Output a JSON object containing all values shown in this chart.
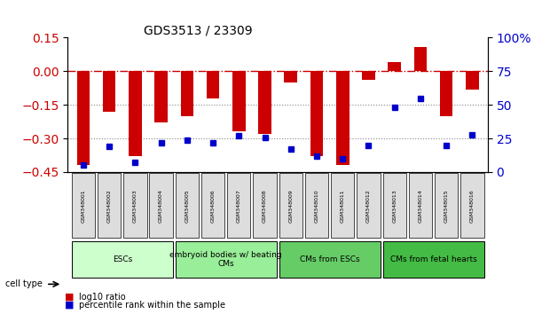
{
  "title": "GDS3513 / 23309",
  "samples": [
    "GSM348001",
    "GSM348002",
    "GSM348003",
    "GSM348004",
    "GSM348005",
    "GSM348006",
    "GSM348007",
    "GSM348008",
    "GSM348009",
    "GSM348010",
    "GSM348011",
    "GSM348012",
    "GSM348013",
    "GSM348014",
    "GSM348015",
    "GSM348016"
  ],
  "log10_ratio": [
    -0.42,
    -0.18,
    -0.38,
    -0.23,
    -0.2,
    -0.12,
    -0.27,
    -0.28,
    -0.05,
    -0.38,
    -0.42,
    -0.04,
    0.04,
    0.11,
    -0.2,
    -0.08
  ],
  "percentile_rank": [
    5,
    19,
    7,
    22,
    24,
    22,
    27,
    26,
    17,
    12,
    10,
    20,
    48,
    55,
    20,
    28
  ],
  "cell_type_groups": [
    {
      "label": "ESCs",
      "start": 0,
      "end": 3,
      "color": "#ccffcc"
    },
    {
      "label": "embryoid bodies w/ beating\nCMs",
      "start": 4,
      "end": 7,
      "color": "#99ee99"
    },
    {
      "label": "CMs from ESCs",
      "start": 8,
      "end": 11,
      "color": "#66dd66"
    },
    {
      "label": "CMs from fetal hearts",
      "start": 12,
      "end": 15,
      "color": "#33cc33"
    }
  ],
  "bar_color": "#cc0000",
  "dot_color": "#0000cc",
  "ref_line_color": "#cc0000",
  "grid_color": "#888888",
  "ylim_left": [
    -0.45,
    0.15
  ],
  "ylim_right": [
    0,
    100
  ],
  "yticks_left": [
    -0.45,
    -0.3,
    -0.15,
    0,
    0.15
  ],
  "yticks_right": [
    0,
    25,
    50,
    75,
    100
  ],
  "bar_width": 0.5
}
